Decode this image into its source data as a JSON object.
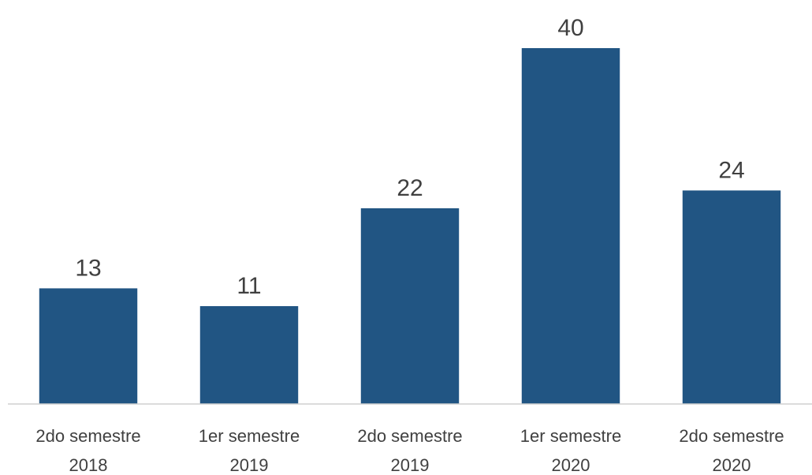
{
  "chart_data": {
    "type": "bar",
    "categories": [
      "2do semestre\n2018",
      "1er semestre\n2019",
      "2do semestre\n2019",
      "1er semestre\n2020",
      "2do semestre\n2020"
    ],
    "values": [
      13,
      11,
      22,
      40,
      24
    ],
    "color": "#215583",
    "ylim": [
      0,
      40
    ]
  }
}
